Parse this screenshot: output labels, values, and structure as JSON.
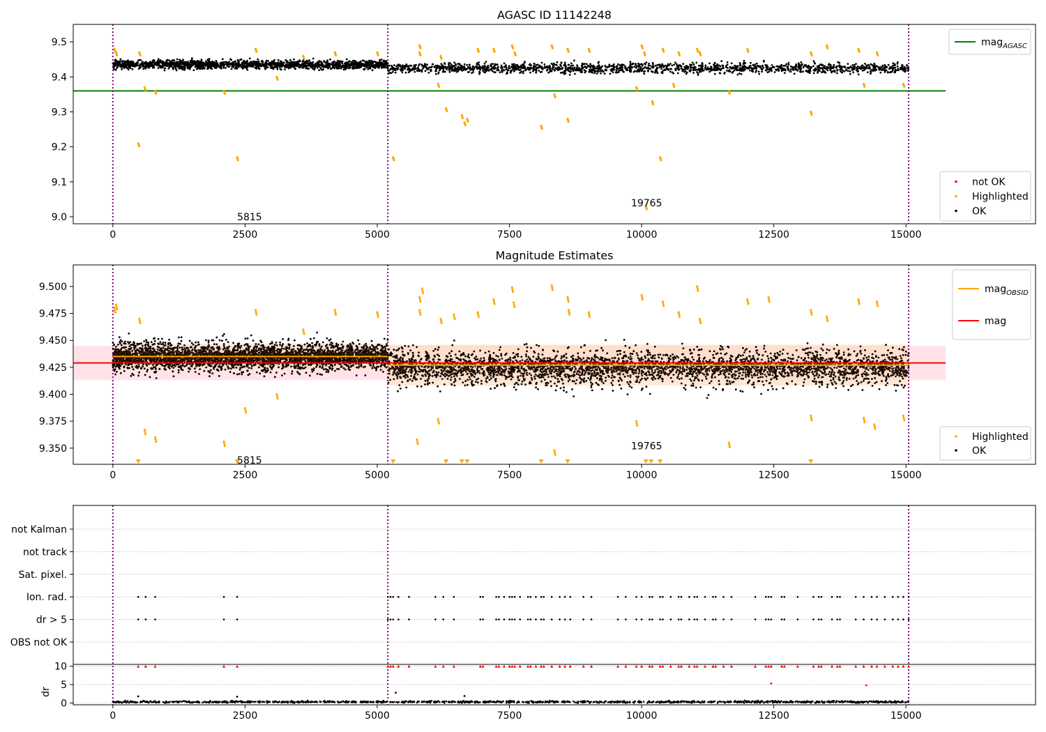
{
  "colors": {
    "ok": "#000000",
    "highlighted": "#ffa500",
    "not_ok": "#ff0000",
    "agasc_line": "#008000",
    "obsid_line": "#ffa500",
    "mag_line": "#ff0000",
    "mag_band": "#ffc0cb",
    "obs_band": "#ffdab9",
    "obs_boundary": "#800080",
    "grid": "#b0b0b0"
  },
  "chart_data": [
    {
      "type": "scatter",
      "title": "AGASC ID 11142248",
      "xlim": [
        -750,
        17450
      ],
      "ylim": [
        8.98,
        9.55
      ],
      "xticks": [
        0,
        2500,
        5000,
        7500,
        10000,
        12500,
        15000
      ],
      "yticks": [
        9.0,
        9.1,
        9.2,
        9.3,
        9.4,
        9.5
      ],
      "ytick_labels": [
        "9.0",
        "9.1",
        "9.2",
        "9.3",
        "9.4",
        "9.5"
      ],
      "obs_boundaries": [
        0,
        5200,
        15050
      ],
      "agasc_mag": 9.36,
      "agasc_line_x": [
        -750,
        15750
      ],
      "legend_top": {
        "placement": "top-right",
        "items": [
          {
            "label": "mag",
            "sub": "AGASC",
            "kind": "line",
            "color": "#008000"
          }
        ]
      },
      "legend_bottom": {
        "placement": "bottom-right",
        "items": [
          {
            "label": "not OK",
            "kind": "dot",
            "color": "#ff0000"
          },
          {
            "label": "Highlighted",
            "kind": "dot",
            "color": "#ffa500"
          },
          {
            "label": "OK",
            "kind": "dot",
            "color": "#000000"
          }
        ]
      },
      "annotations": [
        {
          "text": "5815",
          "x": 2350,
          "y": 9.0
        },
        {
          "text": "19765",
          "x": 9800,
          "y": 9.04
        }
      ],
      "series": [
        {
          "name": "OK",
          "segments": [
            {
              "x0": 0,
              "x1": 5200,
              "center": 9.435,
              "spread": 0.012
            },
            {
              "x0": 5200,
              "x1": 15050,
              "center": 9.425,
              "spread": 0.014
            }
          ]
        },
        {
          "name": "Highlighted",
          "points": [
            [
              30,
              9.48
            ],
            [
              60,
              9.47
            ],
            [
              500,
              9.47
            ],
            [
              600,
              9.37
            ],
            [
              800,
              9.36
            ],
            [
              2100,
              9.36
            ],
            [
              2700,
              9.48
            ],
            [
              3100,
              9.4
            ],
            [
              3600,
              9.46
            ],
            [
              4200,
              9.47
            ],
            [
              5000,
              9.47
            ],
            [
              5800,
              9.49
            ],
            [
              5800,
              9.47
            ],
            [
              6150,
              9.38
            ],
            [
              6200,
              9.46
            ],
            [
              6300,
              9.31
            ],
            [
              6600,
              9.29
            ],
            [
              6650,
              9.27
            ],
            [
              6700,
              9.28
            ],
            [
              6900,
              9.48
            ],
            [
              7200,
              9.48
            ],
            [
              7550,
              9.49
            ],
            [
              7600,
              9.47
            ],
            [
              8100,
              9.26
            ],
            [
              8300,
              9.49
            ],
            [
              8350,
              9.35
            ],
            [
              8600,
              9.48
            ],
            [
              8600,
              9.28
            ],
            [
              9000,
              9.48
            ],
            [
              9900,
              9.37
            ],
            [
              10000,
              9.49
            ],
            [
              10050,
              9.47
            ],
            [
              10200,
              9.33
            ],
            [
              10350,
              9.17
            ],
            [
              10400,
              9.48
            ],
            [
              10600,
              9.38
            ],
            [
              10700,
              9.47
            ],
            [
              11050,
              9.48
            ],
            [
              11100,
              9.47
            ],
            [
              11650,
              9.36
            ],
            [
              12000,
              9.48
            ],
            [
              13200,
              9.3
            ],
            [
              13200,
              9.47
            ],
            [
              13500,
              9.49
            ],
            [
              14100,
              9.48
            ],
            [
              14200,
              9.38
            ],
            [
              14450,
              9.47
            ],
            [
              14950,
              9.38
            ],
            [
              480,
              9.21
            ],
            [
              2350,
              9.17
            ],
            [
              5300,
              9.17
            ],
            [
              10080,
              9.03
            ]
          ]
        }
      ]
    },
    {
      "type": "scatter",
      "title": "Magnitude Estimates",
      "xlim": [
        -750,
        17450
      ],
      "ylim": [
        9.335,
        9.52
      ],
      "xticks": [
        0,
        2500,
        5000,
        7500,
        10000,
        12500,
        15000
      ],
      "yticks": [
        9.35,
        9.375,
        9.4,
        9.425,
        9.45,
        9.475,
        9.5
      ],
      "ytick_labels": [
        "9.350",
        "9.375",
        "9.400",
        "9.425",
        "9.450",
        "9.475",
        "9.500"
      ],
      "obs_boundaries": [
        0,
        5200,
        15050
      ],
      "mag": 9.429,
      "mag_band": [
        9.413,
        9.445
      ],
      "mag_line_x": [
        -750,
        15750
      ],
      "obsid_segments": [
        {
          "x0": 0,
          "x1": 5200,
          "mag": 9.435,
          "band": [
            9.423,
            9.447
          ]
        },
        {
          "x0": 5200,
          "x1": 15050,
          "mag": 9.427,
          "band": [
            9.408,
            9.446
          ]
        }
      ],
      "legend_top": {
        "placement": "top-right",
        "items": [
          {
            "label": "mag",
            "sub": "OBSID",
            "kind": "line",
            "color": "#ffa500"
          },
          {
            "label": "mag",
            "kind": "line",
            "color": "#ff0000"
          }
        ]
      },
      "legend_bottom": {
        "placement": "bottom-right",
        "items": [
          {
            "label": "Highlighted",
            "kind": "dot",
            "color": "#ffa500"
          },
          {
            "label": "OK",
            "kind": "dot",
            "color": "#000000"
          }
        ]
      },
      "annotations": [
        {
          "text": "5815",
          "x": 2350,
          "y": 9.339
        },
        {
          "text": "19765",
          "x": 9800,
          "y": 9.352
        }
      ],
      "out_of_range_markers_x": [
        480,
        2350,
        5300,
        6300,
        6600,
        6700,
        8100,
        8600,
        10080,
        10180,
        10350,
        13200
      ],
      "series": [
        {
          "name": "OK",
          "segments": [
            {
              "x0": 0,
              "x1": 5200,
              "center": 9.435,
              "spread": 0.014
            },
            {
              "x0": 5200,
              "x1": 15050,
              "center": 9.425,
              "spread": 0.018
            }
          ]
        },
        {
          "name": "Highlighted",
          "points": [
            [
              30,
              9.48
            ],
            [
              60,
              9.483
            ],
            [
              500,
              9.47
            ],
            [
              600,
              9.367
            ],
            [
              800,
              9.36
            ],
            [
              2100,
              9.356
            ],
            [
              2500,
              9.387
            ],
            [
              2700,
              9.478
            ],
            [
              3100,
              9.4
            ],
            [
              3600,
              9.46
            ],
            [
              4200,
              9.478
            ],
            [
              5000,
              9.476
            ],
            [
              5800,
              9.49
            ],
            [
              5800,
              9.478
            ],
            [
              5850,
              9.498
            ],
            [
              5750,
              9.358
            ],
            [
              6150,
              9.377
            ],
            [
              6200,
              9.47
            ],
            [
              6450,
              9.474
            ],
            [
              6900,
              9.476
            ],
            [
              7200,
              9.488
            ],
            [
              7550,
              9.499
            ],
            [
              7580,
              9.485
            ],
            [
              8300,
              9.501
            ],
            [
              8350,
              9.348
            ],
            [
              8600,
              9.49
            ],
            [
              8620,
              9.478
            ],
            [
              9000,
              9.476
            ],
            [
              9900,
              9.375
            ],
            [
              10000,
              9.492
            ],
            [
              10400,
              9.486
            ],
            [
              10700,
              9.476
            ],
            [
              11050,
              9.5
            ],
            [
              11100,
              9.47
            ],
            [
              11650,
              9.355
            ],
            [
              12000,
              9.488
            ],
            [
              12400,
              9.49
            ],
            [
              13200,
              9.478
            ],
            [
              13200,
              9.38
            ],
            [
              13500,
              9.472
            ],
            [
              14100,
              9.488
            ],
            [
              14200,
              9.378
            ],
            [
              14450,
              9.486
            ],
            [
              14400,
              9.372
            ],
            [
              14950,
              9.38
            ]
          ]
        }
      ]
    },
    {
      "type": "scatter",
      "xlim": [
        -750,
        17450
      ],
      "xticks": [
        0,
        2500,
        5000,
        7500,
        10000,
        12500,
        15000
      ],
      "obs_boundaries": [
        0,
        5200,
        15050
      ],
      "flag_rows": [
        "not Kalman",
        "not track",
        "Sat. pixel.",
        "Ion. rad.",
        "dr > 5",
        "OBS not OK"
      ],
      "flagged_x": [
        480,
        620,
        800,
        2100,
        2350,
        5200,
        5250,
        5300,
        5400,
        5600,
        6100,
        6250,
        6450,
        6950,
        7000,
        7250,
        7300,
        7400,
        7500,
        7550,
        7600,
        7700,
        7850,
        7900,
        8000,
        8100,
        8150,
        8300,
        8450,
        8550,
        8650,
        8900,
        9050,
        9550,
        9700,
        9900,
        10000,
        10150,
        10200,
        10350,
        10400,
        10550,
        10700,
        10750,
        10900,
        11000,
        11050,
        11200,
        11350,
        11400,
        11550,
        11700,
        12150,
        12350,
        12400,
        12450,
        12650,
        12700,
        12950,
        13250,
        13350,
        13400,
        13600,
        13700,
        13750,
        14050,
        14200,
        14350,
        14450,
        14600,
        14750,
        14850,
        14950,
        15050
      ],
      "dr_ylim": [
        -0.5,
        10.5
      ],
      "dr_yticks": [
        0,
        5,
        10
      ],
      "dr_ylabel": "dr",
      "dr_series": {
        "name": "dr",
        "base": 0.3,
        "spread": 0.25,
        "outliers": [
          [
            480,
            1.8
          ],
          [
            2350,
            1.7
          ],
          [
            5350,
            2.8
          ],
          [
            6650,
            1.9
          ],
          [
            12450,
            5.3
          ],
          [
            14250,
            4.8
          ]
        ]
      }
    }
  ]
}
